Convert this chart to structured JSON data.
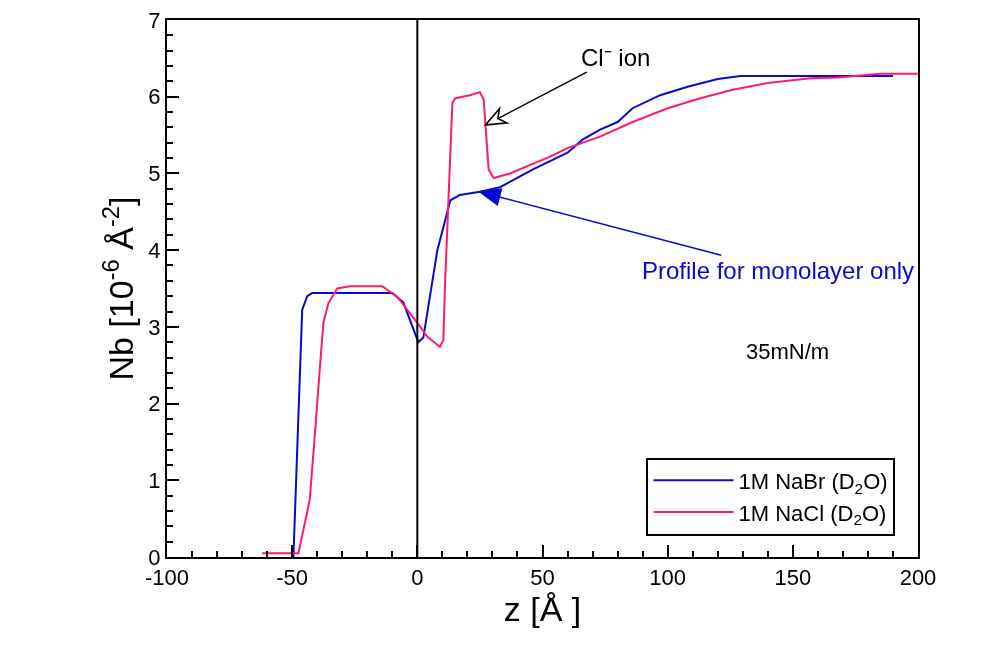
{
  "chart_data": {
    "type": "line",
    "xlabel": "z [Å ]",
    "ylabel": "Nb [10$^{-6}$ Å$^{-2}$]",
    "xlim": [
      -100,
      200
    ],
    "xticks": [
      -100,
      -50,
      0,
      50,
      100,
      150,
      200
    ],
    "ylim": [
      0,
      7
    ],
    "yticks": [
      0,
      1,
      2,
      3,
      4,
      5,
      6,
      7
    ],
    "grid": false,
    "legend": "bottom right",
    "line_style": "solid",
    "marker": "none",
    "ref_lines": [
      {
        "axis": "x",
        "value": 0,
        "color": "#000000"
      }
    ],
    "annotations": [
      {
        "text": "Cl⁻ ion",
        "x": 27.2,
        "y": 5.63
      },
      {
        "text": "Profile for monolayer only",
        "x": 25,
        "y": 4.76
      },
      "35mN/m"
    ],
    "series": [
      {
        "name": "1M NaBr (D$_{2}$O)",
        "color": "#0a0acc",
        "x": [
          -49.5,
          -46,
          -44,
          -42,
          -10,
          -5.6,
          0.4,
          2.4,
          8,
          10.4,
          13.2,
          17,
          25,
          33,
          46,
          60,
          66,
          73,
          80,
          86,
          97,
          108,
          120,
          129,
          190
        ],
        "values": [
          0,
          3.22,
          3.4,
          3.44,
          3.44,
          3.32,
          2.8,
          2.86,
          4.0,
          4.3,
          4.65,
          4.72,
          4.76,
          4.82,
          5.05,
          5.27,
          5.44,
          5.57,
          5.67,
          5.85,
          6.02,
          6.13,
          6.23,
          6.27,
          6.27
        ]
      },
      {
        "name": "1M NaCl (D$_{2}$O)",
        "color": "#ff1a6e",
        "x": [
          -62,
          -47.5,
          -43,
          -41,
          -39,
          -37.5,
          -35.5,
          -32,
          -27,
          -14,
          -8,
          -3,
          1.2,
          4,
          9,
          10.4,
          11,
          14,
          15.2,
          21,
          25,
          26.5,
          28.5,
          30.5,
          37,
          53,
          60,
          73,
          86,
          100,
          113,
          126,
          140,
          157,
          168,
          185,
          200
        ],
        "values": [
          0.05,
          0.05,
          0.74,
          1.57,
          2.44,
          3.06,
          3.31,
          3.5,
          3.53,
          3.53,
          3.39,
          3.18,
          3.0,
          2.87,
          2.74,
          2.83,
          3.5,
          5.92,
          5.98,
          6.02,
          6.06,
          5.96,
          5.05,
          4.94,
          5.0,
          5.22,
          5.33,
          5.48,
          5.67,
          5.85,
          5.98,
          6.09,
          6.18,
          6.24,
          6.25,
          6.3,
          6.3
        ]
      }
    ]
  }
}
